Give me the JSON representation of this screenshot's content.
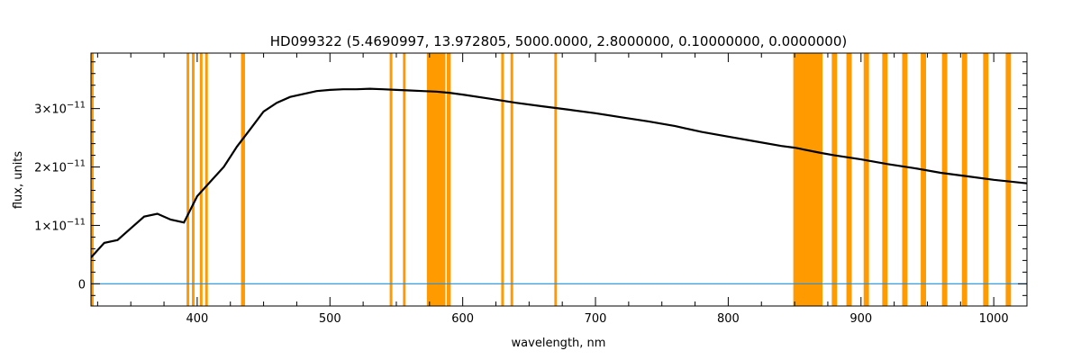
{
  "chart_data": {
    "type": "line",
    "title": "HD099322    (5.4690997, 13.972805, 5000.0000, 2.8000000, 0.10000000, 0.0000000)",
    "xlabel": "wavelength, nm",
    "ylabel": "flux, units",
    "xlim": [
      320,
      1025
    ],
    "ylim": [
      -3.8e-12,
      3.95e-11
    ],
    "x_ticks": [
      400,
      500,
      600,
      700,
      800,
      900,
      1000
    ],
    "x_tick_labels": [
      "400",
      "500",
      "600",
      "700",
      "800",
      "900",
      "1000"
    ],
    "y_ticks": [
      0,
      1e-11,
      2e-11,
      3e-11
    ],
    "y_tick_labels": [
      {
        "mantissa": "0",
        "exponent": ""
      },
      {
        "mantissa": "1×10",
        "exponent": "−11"
      },
      {
        "mantissa": "2×10",
        "exponent": "−11"
      },
      {
        "mantissa": "3×10",
        "exponent": "−11"
      }
    ],
    "grid": false,
    "legend": "none",
    "colors": {
      "flux": "#000000",
      "error": "#1e8fe6",
      "mask": "#ff9a00"
    },
    "series": [
      {
        "values": [
          [
            320,
            4.5e-12
          ],
          [
            330,
            7e-12
          ],
          [
            340,
            7.5e-12
          ],
          [
            350,
            9.5e-12
          ],
          [
            360,
            1.15e-11
          ],
          [
            370,
            1.2e-11
          ],
          [
            380,
            1.1e-11
          ],
          [
            390,
            1.05e-11
          ],
          [
            400,
            1.5e-11
          ],
          [
            410,
            1.75e-11
          ],
          [
            420,
            2e-11
          ],
          [
            430,
            2.35e-11
          ],
          [
            440,
            2.65e-11
          ],
          [
            450,
            2.95e-11
          ],
          [
            460,
            3.1e-11
          ],
          [
            470,
            3.2e-11
          ],
          [
            480,
            3.25e-11
          ],
          [
            490,
            3.3e-11
          ],
          [
            500,
            3.32e-11
          ],
          [
            510,
            3.33e-11
          ],
          [
            520,
            3.33e-11
          ],
          [
            530,
            3.34e-11
          ],
          [
            540,
            3.33e-11
          ],
          [
            550,
            3.32e-11
          ],
          [
            560,
            3.31e-11
          ],
          [
            570,
            3.3e-11
          ],
          [
            580,
            3.29e-11
          ],
          [
            590,
            3.27e-11
          ],
          [
            600,
            3.24e-11
          ],
          [
            620,
            3.17e-11
          ],
          [
            640,
            3.1e-11
          ],
          [
            660,
            3.04e-11
          ],
          [
            680,
            2.98e-11
          ],
          [
            700,
            2.92e-11
          ],
          [
            720,
            2.85e-11
          ],
          [
            740,
            2.78e-11
          ],
          [
            760,
            2.7e-11
          ],
          [
            780,
            2.6e-11
          ],
          [
            800,
            2.52e-11
          ],
          [
            820,
            2.44e-11
          ],
          [
            840,
            2.36e-11
          ],
          [
            850,
            2.33e-11
          ],
          [
            870,
            2.24e-11
          ],
          [
            880,
            2.2e-11
          ],
          [
            900,
            2.13e-11
          ],
          [
            920,
            2.05e-11
          ],
          [
            940,
            1.98e-11
          ],
          [
            960,
            1.9e-11
          ],
          [
            980,
            1.84e-11
          ],
          [
            1000,
            1.78e-11
          ],
          [
            1025,
            1.72e-11
          ]
        ]
      },
      {
        "values": [
          [
            320,
            0
          ],
          [
            380,
            0
          ],
          [
            500,
            0
          ],
          [
            700,
            0
          ],
          [
            760,
            0
          ],
          [
            850,
            0
          ],
          [
            950,
            0
          ],
          [
            1025,
            0
          ]
        ]
      }
    ],
    "shaded_regions": [
      [
        320,
        322
      ],
      [
        392,
        394
      ],
      [
        396,
        398
      ],
      [
        402,
        404
      ],
      [
        406,
        408
      ],
      [
        433,
        436
      ],
      [
        545,
        547
      ],
      [
        555,
        557
      ],
      [
        573,
        587
      ],
      [
        588,
        591
      ],
      [
        629,
        631
      ],
      [
        636,
        638
      ],
      [
        669,
        671
      ],
      [
        849,
        871
      ],
      [
        878,
        882
      ],
      [
        889,
        893
      ],
      [
        902,
        906
      ],
      [
        916,
        920
      ],
      [
        931,
        935
      ],
      [
        945,
        949
      ],
      [
        961,
        965
      ],
      [
        976,
        980
      ],
      [
        992,
        996
      ],
      [
        1009,
        1013
      ]
    ]
  }
}
